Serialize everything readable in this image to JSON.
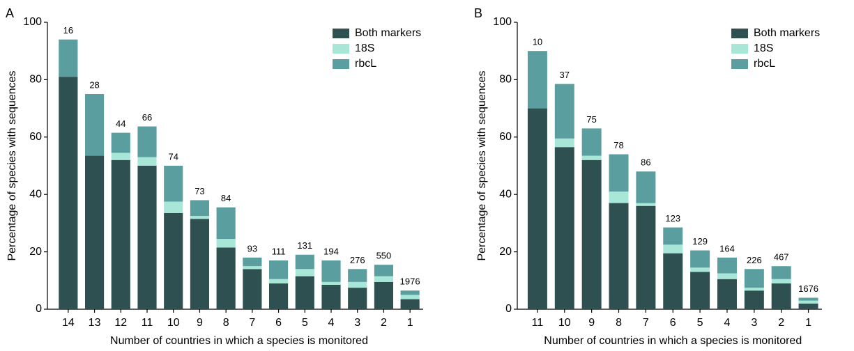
{
  "chart_data": [
    {
      "type": "bar",
      "stacked": true,
      "panel": "A",
      "xlabel": "Number of countries in which a species is monitored",
      "ylabel": "Percentage of species with sequences",
      "categories": [
        "14",
        "13",
        "12",
        "11",
        "10",
        "9",
        "8",
        "7",
        "6",
        "5",
        "4",
        "3",
        "2",
        "1"
      ],
      "bar_labels": [
        "16",
        "28",
        "44",
        "66",
        "74",
        "73",
        "84",
        "93",
        "111",
        "131",
        "194",
        "276",
        "550",
        "1976"
      ],
      "series": [
        {
          "name": "Both markers",
          "color": "#2f5050",
          "values": [
            81,
            53.5,
            52,
            50,
            33.5,
            31.5,
            21.5,
            14,
            9,
            11.5,
            8.5,
            7.5,
            9.5,
            3.5
          ]
        },
        {
          "name": "18S",
          "color": "#a8e6d8",
          "values": [
            0,
            0,
            2.5,
            3,
            4,
            1,
            3,
            1,
            1.5,
            2.5,
            1,
            2,
            2,
            1.5
          ]
        },
        {
          "name": "rbcL",
          "color": "#5a9ea0",
          "values": [
            13,
            21.5,
            7,
            10.7,
            12.5,
            5.5,
            11,
            3,
            6.5,
            5,
            7.5,
            4.5,
            4,
            1.5
          ]
        }
      ],
      "ylim": [
        0,
        100
      ],
      "yticks": [
        0,
        20,
        40,
        60,
        80,
        100
      ],
      "legend": "upper right"
    },
    {
      "type": "bar",
      "stacked": true,
      "panel": "B",
      "xlabel": "Number of countries in which a species is monitored",
      "ylabel": "Percentage of species with sequences",
      "categories": [
        "11",
        "10",
        "9",
        "8",
        "7",
        "6",
        "5",
        "4",
        "3",
        "2",
        "1"
      ],
      "bar_labels": [
        "10",
        "37",
        "75",
        "78",
        "86",
        "123",
        "129",
        "164",
        "226",
        "467",
        "1676"
      ],
      "series": [
        {
          "name": "Both markers",
          "color": "#2f5050",
          "values": [
            70,
            56.5,
            52,
            37,
            36,
            19.5,
            13,
            10.5,
            6.5,
            9,
            2
          ]
        },
        {
          "name": "18S",
          "color": "#a8e6d8",
          "values": [
            0,
            3,
            1.5,
            4,
            1,
            3,
            1.5,
            2,
            1,
            1.5,
            1
          ]
        },
        {
          "name": "rbcL",
          "color": "#5a9ea0",
          "values": [
            20,
            19,
            9.5,
            13,
            11,
            6,
            6,
            5.5,
            6.5,
            4.5,
            1
          ]
        }
      ],
      "ylim": [
        0,
        100
      ],
      "yticks": [
        0,
        20,
        40,
        60,
        80,
        100
      ],
      "legend": "upper right"
    }
  ]
}
